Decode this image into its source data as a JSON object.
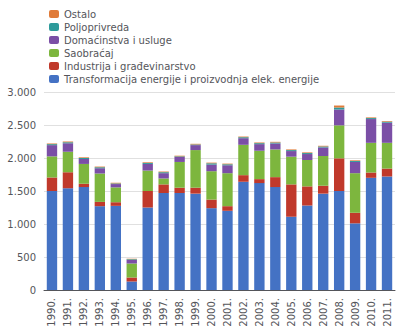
{
  "chart_data": {
    "type": "bar",
    "stacked": true,
    "grid": true,
    "legend": "upper left",
    "categories": [
      "1990.",
      "1991.",
      "1992.",
      "1993.",
      "1994.",
      "1995.",
      "1996.",
      "1997.",
      "1998.",
      "1999.",
      "2000.",
      "2001.",
      "2002.",
      "2003.",
      "2004.",
      "2005.",
      "2006.",
      "2007.",
      "2008.",
      "2009.",
      "2010.",
      "2011."
    ],
    "series": [
      {
        "name": "Transformacija energije i proizvodnja elek. energije",
        "color": "#4472C4",
        "values": [
          1500,
          1540,
          1560,
          1270,
          1275,
          130,
          1250,
          1470,
          1470,
          1460,
          1240,
          1200,
          1640,
          1620,
          1560,
          1110,
          1280,
          1460,
          1500,
          1010,
          1700,
          1720
        ]
      },
      {
        "name": "Industrija i građevinarstvo",
        "color": "#C0392B",
        "values": [
          205,
          245,
          50,
          65,
          55,
          60,
          250,
          130,
          80,
          90,
          130,
          70,
          100,
          60,
          150,
          490,
          290,
          120,
          495,
          160,
          80,
          120
        ]
      },
      {
        "name": "Saobraćaj",
        "color": "#7DB63E",
        "values": [
          320,
          310,
          300,
          430,
          225,
          210,
          310,
          90,
          390,
          570,
          430,
          500,
          460,
          430,
          420,
          420,
          400,
          450,
          500,
          600,
          450,
          390
        ]
      },
      {
        "name": "Domaćinstva i usluge",
        "color": "#7B4FA6",
        "values": [
          170,
          130,
          75,
          80,
          50,
          55,
          100,
          80,
          75,
          75,
          100,
          120,
          100,
          100,
          90,
          85,
          90,
          130,
          240,
          170,
          360,
          305
        ]
      },
      {
        "name": "Poljoprivreda",
        "color": "#2E9B9B",
        "values": [
          15,
          15,
          15,
          15,
          10,
          10,
          15,
          15,
          10,
          10,
          20,
          15,
          15,
          15,
          15,
          15,
          15,
          15,
          30,
          15,
          15,
          15
        ]
      },
      {
        "name": "Ostalo",
        "color": "#E07B39",
        "values": [
          10,
          10,
          10,
          10,
          10,
          10,
          10,
          10,
          10,
          10,
          10,
          10,
          10,
          10,
          10,
          10,
          10,
          10,
          30,
          10,
          10,
          10
        ]
      }
    ],
    "ylim": [
      0,
      3000
    ],
    "yticks": [
      0,
      500,
      {
        "value": 1000,
        "label": "1.000"
      },
      {
        "value": 1500,
        "label": "1.500"
      },
      {
        "value": 2000,
        "label": "2.000"
      },
      {
        "value": 2500,
        "label": "2.500"
      },
      {
        "value": 3000,
        "label": "3.000"
      }
    ]
  }
}
